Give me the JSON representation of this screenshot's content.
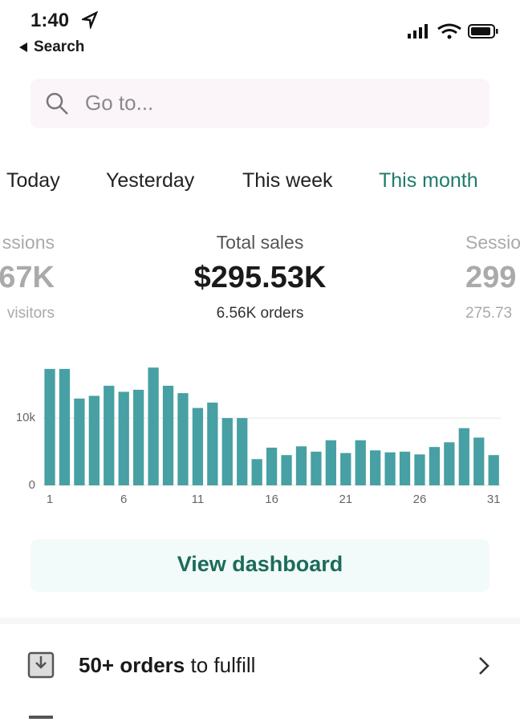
{
  "status_bar": {
    "time": "1:40",
    "back": "Search"
  },
  "search": {
    "placeholder": "Go to..."
  },
  "tabs": [
    "Today",
    "Yesterday",
    "This week",
    "This month"
  ],
  "active_tab": 3,
  "metrics": {
    "left": {
      "title": "ssions",
      "value": "67K",
      "subtitle": "visitors"
    },
    "center": {
      "title": "Total sales",
      "value": "$295.53K",
      "subtitle": "6.56K orders"
    },
    "right": {
      "title": "Sessio",
      "value": "299",
      "subtitle": "275.73"
    }
  },
  "chart_data": {
    "type": "bar",
    "color": "#47a0a3",
    "x": [
      1,
      2,
      3,
      4,
      5,
      6,
      7,
      8,
      9,
      10,
      11,
      12,
      13,
      14,
      15,
      16,
      17,
      18,
      19,
      20,
      21,
      22,
      23,
      24,
      25,
      26,
      27,
      28,
      29,
      30,
      31
    ],
    "values": [
      17300,
      17300,
      12900,
      13300,
      14800,
      13900,
      14200,
      17500,
      14800,
      13700,
      11500,
      12300,
      10000,
      10000,
      3900,
      5600,
      4500,
      5800,
      5000,
      6700,
      4800,
      6700,
      5200,
      4900,
      5000,
      4600,
      5700,
      6400,
      8500,
      7100,
      4500
    ],
    "xlim": [
      0.5,
      31.5
    ],
    "xticks": [
      1,
      6,
      11,
      16,
      21,
      26,
      31
    ],
    "ylim": [
      0,
      18000
    ],
    "yticks": [
      0,
      {
        "value": 10000,
        "label": "10k"
      }
    ],
    "grid": true
  },
  "button": {
    "label": "View dashboard"
  },
  "list": [
    {
      "bold": "50+ orders",
      "rest": "to fulfill"
    }
  ]
}
